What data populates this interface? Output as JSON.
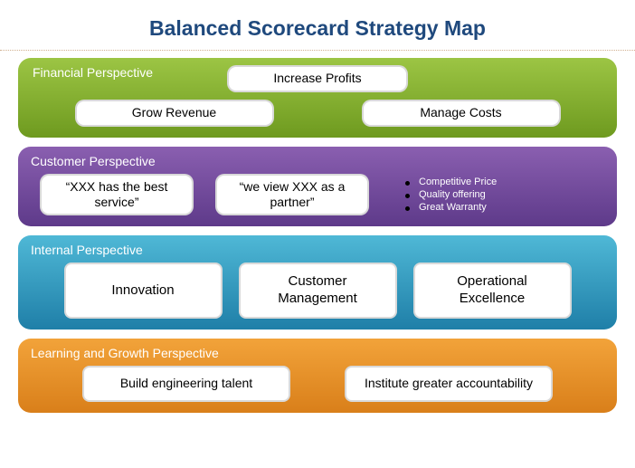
{
  "title": "Balanced Scorecard Strategy Map",
  "title_color": "#1f497d",
  "title_fontsize": 23,
  "background_color": "#ffffff",
  "divider_color": "#d0b090",
  "box_style": {
    "background": "#ffffff",
    "text_color": "#000000",
    "border_color": "rgba(0,0,0,0.15)",
    "border_radius": 10
  },
  "panels": {
    "financial": {
      "title": "Financial Perspective",
      "gradient_top": "#9cc544",
      "gradient_bottom": "#6e9a1f",
      "top_box": "Increase Profits",
      "bottom_left": "Grow Revenue",
      "bottom_right": "Manage Costs"
    },
    "customer": {
      "title": "Customer Perspective",
      "gradient_top": "#8a5fb0",
      "gradient_bottom": "#5e3a8a",
      "box1": "“XXX has the best service”",
      "box2": "“we view XXX as a partner”",
      "bullets": [
        "Competitive Price",
        "Quality offering",
        "Great Warranty"
      ],
      "bullet_dot_color": "#000000",
      "bullet_text_color": "#ffffff"
    },
    "internal": {
      "title": "Internal Perspective",
      "gradient_top": "#4fb8d6",
      "gradient_bottom": "#1f7fa8",
      "box1": "Innovation",
      "box2": "Customer Management",
      "box3": "Operational Excellence"
    },
    "learning": {
      "title": "Learning and Growth Perspective",
      "gradient_top": "#f2a33a",
      "gradient_bottom": "#d97f1a",
      "box1": "Build engineering talent",
      "box2": "Institute greater accountability"
    }
  }
}
